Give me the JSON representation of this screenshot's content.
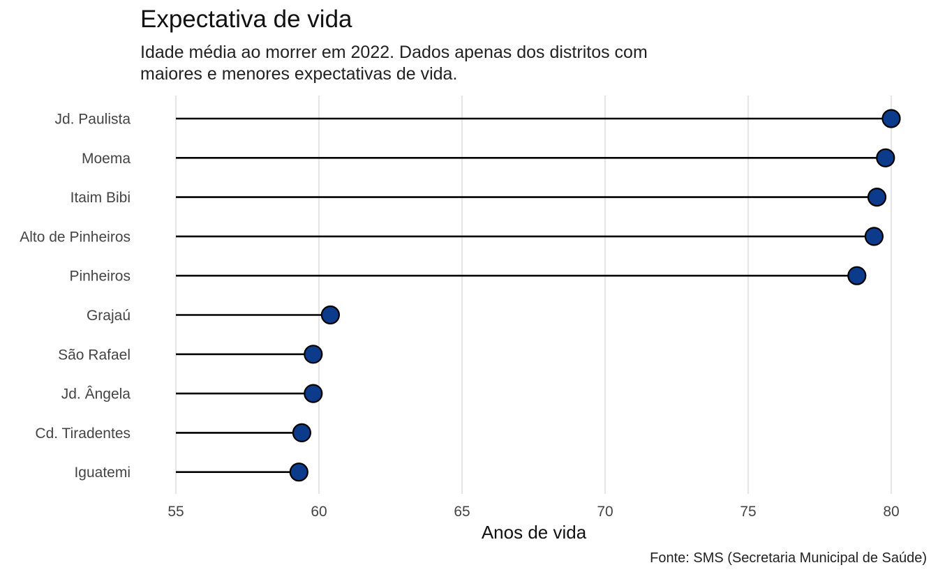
{
  "chart_data": {
    "type": "lollipop",
    "title": "Expectativa de vida",
    "subtitle": "Idade média ao morrer em 2022. Dados apenas dos distritos com maiores e menores expectativas de vida.",
    "source": "Fonte: SMS (Secretaria Municipal de Saúde)",
    "xlabel": "Anos de vida",
    "ylabel": "",
    "xlim": [
      55,
      80
    ],
    "xticks": [
      55,
      60,
      65,
      70,
      75,
      80
    ],
    "baseline": 55,
    "grid": "vertical",
    "legend": "none",
    "categories": [
      "Jd. Paulista",
      "Moema",
      "Itaim Bibi",
      "Alto de Pinheiros",
      "Pinheiros",
      "Grajaú",
      "São Rafael",
      "Jd. Ângela",
      "Cd. Tiradentes",
      "Iguatemi"
    ],
    "values": [
      80.0,
      79.8,
      79.5,
      79.4,
      78.8,
      60.4,
      59.8,
      59.8,
      59.4,
      59.3
    ],
    "colors": {
      "point": "#0d3b8c",
      "stroke": "#000000",
      "stem": "#000000",
      "grid": "#e6e6e6"
    }
  }
}
